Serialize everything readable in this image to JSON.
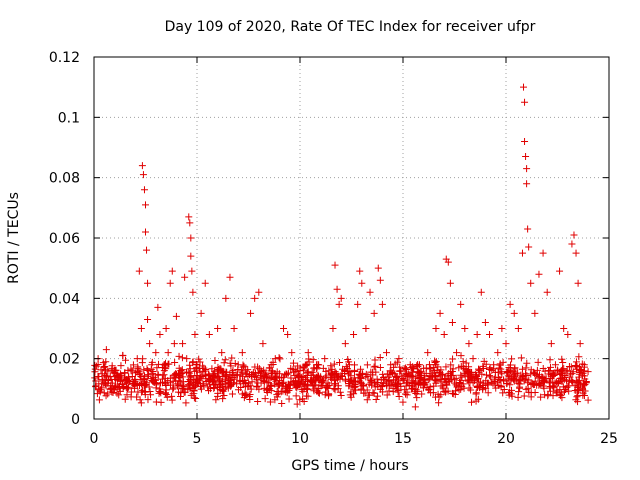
{
  "chart_data": {
    "type": "scatter",
    "title": "Day 109 of 2020, Rate Of TEC Index for receiver ufpr",
    "xlabel": "GPS time / hours",
    "ylabel": "ROTI / TECUs",
    "xlim": [
      0,
      25
    ],
    "ylim": [
      0,
      0.12
    ],
    "x_ticks": [
      0,
      5,
      10,
      15,
      20,
      25
    ],
    "x_tick_labels": [
      "0",
      "5",
      "10",
      "15",
      "20",
      "25"
    ],
    "y_ticks": [
      0,
      0.02,
      0.04,
      0.06,
      0.08,
      0.1,
      0.12
    ],
    "y_tick_labels": [
      "0",
      "0.02",
      "0.04",
      "0.06",
      "0.08",
      "0.1",
      "0.12"
    ],
    "grid": true,
    "marker": "+",
    "marker_color": "#e00000",
    "series": [
      {
        "name": "ROTI",
        "points": [
          [
            0.1,
            0.011
          ],
          [
            0.2,
            0.02
          ],
          [
            0.3,
            0.009
          ],
          [
            0.4,
            0.015
          ],
          [
            0.5,
            0.012
          ],
          [
            0.6,
            0.023
          ],
          [
            0.8,
            0.01
          ],
          [
            1.0,
            0.014
          ],
          [
            1.2,
            0.008
          ],
          [
            1.4,
            0.021
          ],
          [
            1.6,
            0.012
          ],
          [
            1.8,
            0.016
          ],
          [
            2.0,
            0.013
          ],
          [
            2.1,
            0.02
          ],
          [
            2.2,
            0.049
          ],
          [
            2.3,
            0.03
          ],
          [
            2.35,
            0.084
          ],
          [
            2.4,
            0.081
          ],
          [
            2.45,
            0.076
          ],
          [
            2.5,
            0.071
          ],
          [
            2.5,
            0.062
          ],
          [
            2.55,
            0.056
          ],
          [
            2.6,
            0.045
          ],
          [
            2.6,
            0.033
          ],
          [
            2.7,
            0.025
          ],
          [
            2.8,
            0.018
          ],
          [
            3.0,
            0.022
          ],
          [
            3.1,
            0.037
          ],
          [
            3.2,
            0.028
          ],
          [
            3.4,
            0.018
          ],
          [
            3.5,
            0.03
          ],
          [
            3.6,
            0.022
          ],
          [
            3.7,
            0.045
          ],
          [
            3.8,
            0.049
          ],
          [
            3.9,
            0.025
          ],
          [
            4.0,
            0.034
          ],
          [
            4.1,
            0.015
          ],
          [
            4.3,
            0.025
          ],
          [
            4.4,
            0.047
          ],
          [
            4.5,
            0.02
          ],
          [
            4.6,
            0.067
          ],
          [
            4.65,
            0.065
          ],
          [
            4.7,
            0.06
          ],
          [
            4.7,
            0.054
          ],
          [
            4.75,
            0.049
          ],
          [
            4.8,
            0.042
          ],
          [
            4.9,
            0.028
          ],
          [
            5.0,
            0.018
          ],
          [
            5.2,
            0.035
          ],
          [
            5.4,
            0.045
          ],
          [
            5.6,
            0.028
          ],
          [
            5.8,
            0.015
          ],
          [
            6.0,
            0.03
          ],
          [
            6.2,
            0.022
          ],
          [
            6.4,
            0.04
          ],
          [
            6.6,
            0.047
          ],
          [
            6.8,
            0.03
          ],
          [
            7.0,
            0.018
          ],
          [
            7.2,
            0.022
          ],
          [
            7.4,
            0.015
          ],
          [
            7.6,
            0.035
          ],
          [
            7.8,
            0.04
          ],
          [
            8.0,
            0.042
          ],
          [
            8.2,
            0.025
          ],
          [
            8.4,
            0.012
          ],
          [
            8.6,
            0.018
          ],
          [
            8.8,
            0.02
          ],
          [
            9.0,
            0.015
          ],
          [
            9.2,
            0.03
          ],
          [
            9.4,
            0.028
          ],
          [
            9.6,
            0.022
          ],
          [
            9.8,
            0.012
          ],
          [
            10.0,
            0.016
          ],
          [
            10.2,
            0.01
          ],
          [
            10.4,
            0.022
          ],
          [
            10.6,
            0.012
          ],
          [
            10.8,
            0.018
          ],
          [
            11.0,
            0.014
          ],
          [
            11.2,
            0.02
          ],
          [
            11.4,
            0.016
          ],
          [
            11.6,
            0.03
          ],
          [
            11.7,
            0.051
          ],
          [
            11.8,
            0.043
          ],
          [
            11.9,
            0.038
          ],
          [
            12.0,
            0.04
          ],
          [
            12.2,
            0.025
          ],
          [
            12.4,
            0.018
          ],
          [
            12.6,
            0.028
          ],
          [
            12.8,
            0.038
          ],
          [
            12.9,
            0.049
          ],
          [
            13.0,
            0.045
          ],
          [
            13.2,
            0.03
          ],
          [
            13.4,
            0.042
          ],
          [
            13.6,
            0.035
          ],
          [
            13.8,
            0.05
          ],
          [
            13.9,
            0.046
          ],
          [
            14.0,
            0.038
          ],
          [
            14.2,
            0.022
          ],
          [
            14.4,
            0.018
          ],
          [
            14.6,
            0.015
          ],
          [
            14.8,
            0.02
          ],
          [
            15.0,
            0.013
          ],
          [
            15.2,
            0.008
          ],
          [
            15.4,
            0.012
          ],
          [
            15.6,
            0.004
          ],
          [
            15.8,
            0.018
          ],
          [
            16.0,
            0.012
          ],
          [
            16.2,
            0.022
          ],
          [
            16.4,
            0.014
          ],
          [
            16.6,
            0.03
          ],
          [
            16.8,
            0.035
          ],
          [
            17.0,
            0.028
          ],
          [
            17.1,
            0.053
          ],
          [
            17.2,
            0.052
          ],
          [
            17.3,
            0.045
          ],
          [
            17.4,
            0.032
          ],
          [
            17.6,
            0.022
          ],
          [
            17.8,
            0.038
          ],
          [
            18.0,
            0.03
          ],
          [
            18.2,
            0.025
          ],
          [
            18.4,
            0.02
          ],
          [
            18.6,
            0.028
          ],
          [
            18.8,
            0.042
          ],
          [
            19.0,
            0.032
          ],
          [
            19.2,
            0.028
          ],
          [
            19.4,
            0.018
          ],
          [
            19.6,
            0.022
          ],
          [
            19.8,
            0.03
          ],
          [
            20.0,
            0.025
          ],
          [
            20.2,
            0.038
          ],
          [
            20.4,
            0.035
          ],
          [
            20.6,
            0.03
          ],
          [
            20.8,
            0.055
          ],
          [
            20.85,
            0.11
          ],
          [
            20.9,
            0.105
          ],
          [
            20.9,
            0.092
          ],
          [
            20.95,
            0.087
          ],
          [
            21.0,
            0.083
          ],
          [
            21.0,
            0.078
          ],
          [
            21.05,
            0.063
          ],
          [
            21.1,
            0.057
          ],
          [
            21.2,
            0.045
          ],
          [
            21.4,
            0.035
          ],
          [
            21.6,
            0.048
          ],
          [
            21.8,
            0.055
          ],
          [
            22.0,
            0.042
          ],
          [
            22.2,
            0.025
          ],
          [
            22.4,
            0.018
          ],
          [
            22.6,
            0.049
          ],
          [
            22.8,
            0.03
          ],
          [
            23.0,
            0.028
          ],
          [
            23.2,
            0.058
          ],
          [
            23.3,
            0.061
          ],
          [
            23.4,
            0.055
          ],
          [
            23.5,
            0.045
          ],
          [
            23.6,
            0.025
          ],
          [
            23.8,
            0.018
          ],
          [
            23.9,
            0.012
          ]
        ]
      }
    ],
    "dense_band": {
      "description_values": "primary cluster of ROTI samples",
      "x_range": [
        0,
        24
      ],
      "y_range": [
        0.004,
        0.022
      ]
    }
  }
}
